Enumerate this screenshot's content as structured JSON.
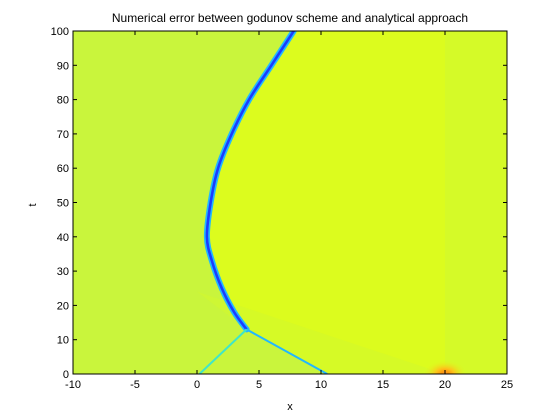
{
  "chart_data": {
    "type": "heatmap",
    "title": "Numerical error between godunov scheme and analytical approach",
    "xlabel": "x",
    "ylabel": "t",
    "xlim": [
      -10,
      25
    ],
    "ylim": [
      0,
      100
    ],
    "xticks": [
      -10,
      -5,
      0,
      5,
      10,
      15,
      20,
      25
    ],
    "yticks": [
      0,
      10,
      20,
      30,
      40,
      50,
      60,
      70,
      80,
      90,
      100
    ],
    "grid": false,
    "colors": {
      "background_field": "#c9f53c",
      "right_region": "#dcfc1e",
      "fan_band": "#d2f72e",
      "shock_core": "#1a3cff",
      "shock_edge": "#22b7ff",
      "left_ray": "#3fe6c8",
      "hotspot": "#ff9b1a"
    },
    "features": [
      {
        "name": "curved shock",
        "points": [
          [
            7.8,
            100
          ],
          [
            6,
            90
          ],
          [
            4.2,
            80
          ],
          [
            2.8,
            70
          ],
          [
            1.7,
            60
          ],
          [
            1.1,
            50
          ],
          [
            0.8,
            40
          ],
          [
            1.2,
            33
          ],
          [
            2,
            25
          ],
          [
            3,
            18
          ],
          [
            4,
            13
          ]
        ]
      },
      {
        "name": "straight shock",
        "points": [
          [
            4,
            13
          ],
          [
            10.5,
            0
          ]
        ]
      },
      {
        "name": "left characteristic",
        "points": [
          [
            0.2,
            0
          ],
          [
            4,
            13
          ]
        ]
      },
      {
        "name": "fan from x=20",
        "points": [
          [
            20,
            0
          ],
          [
            0,
            24
          ]
        ]
      },
      {
        "name": "source point",
        "points": [
          [
            20,
            0
          ]
        ]
      }
    ]
  }
}
